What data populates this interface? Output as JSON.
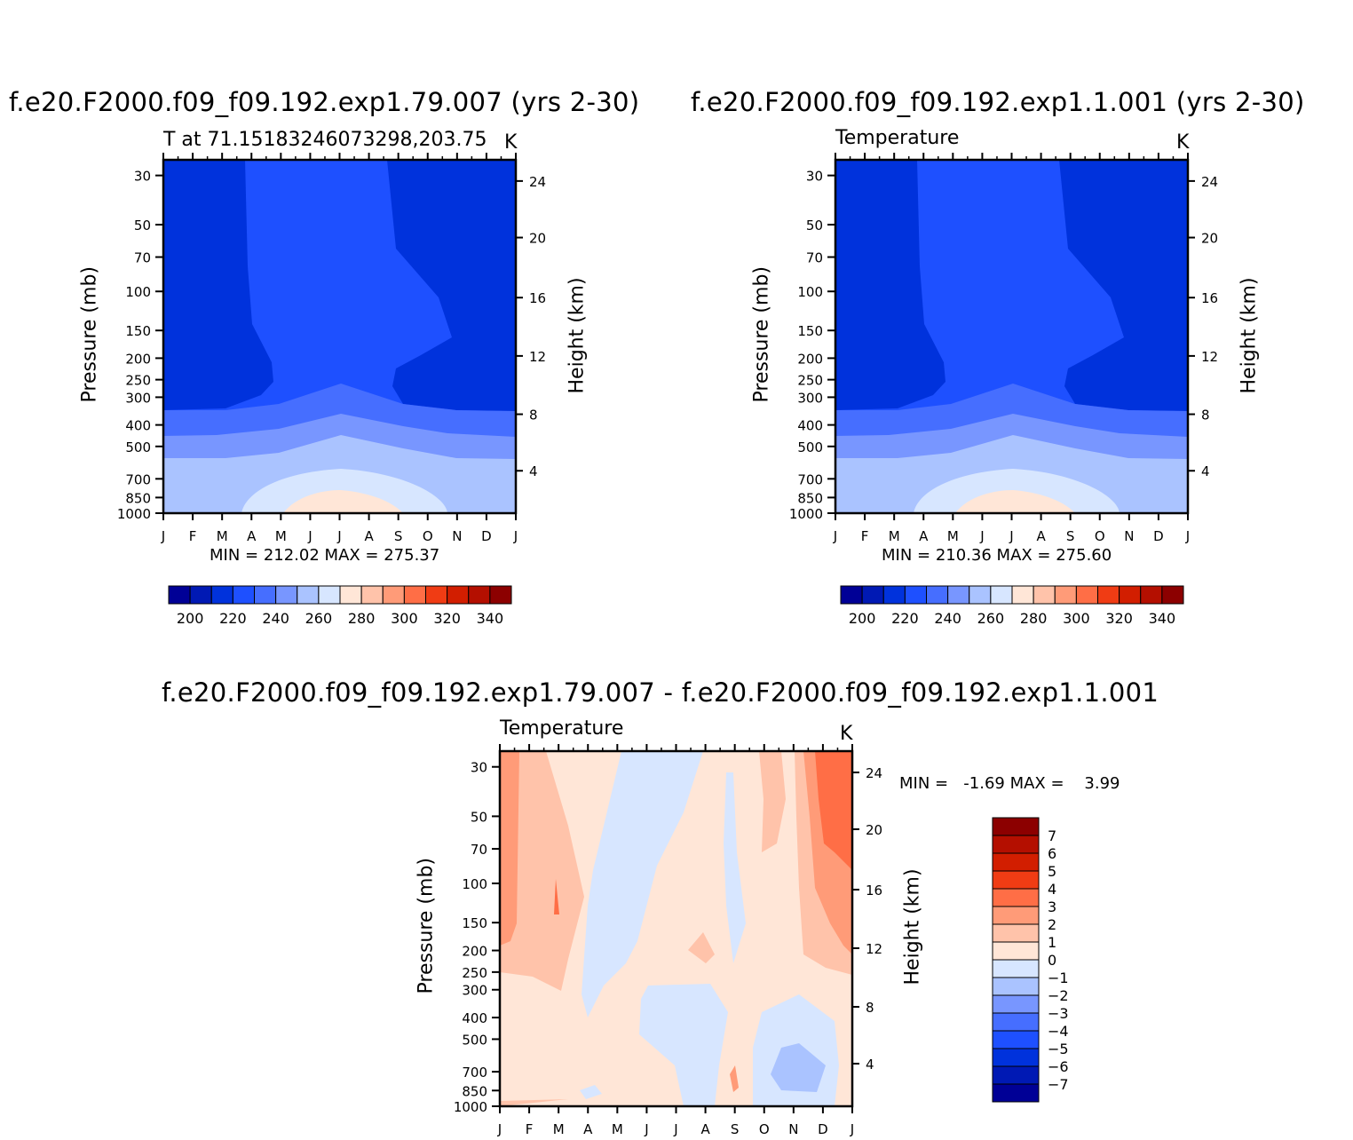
{
  "panels": [
    {
      "title": "f.e20.F2000.f09_f09.192.exp1.79.007 (yrs 2-30)",
      "subtitle": "T at 71.15183246073298,203.75",
      "units": "K",
      "minmax": "MIN = 212.02 MAX = 275.37",
      "ylabel": "Pressure (mb)",
      "ylabel_right": "Height (km)"
    },
    {
      "title": "f.e20.F2000.f09_f09.192.exp1.1.001 (yrs 2-30)",
      "subtitle": "Temperature",
      "units": "K",
      "minmax": "MIN = 210.36 MAX = 275.60",
      "ylabel": "Pressure (mb)",
      "ylabel_right": "Height (km)"
    },
    {
      "title": "f.e20.F2000.f09_f09.192.exp1.79.007 - f.e20.F2000.f09_f09.192.exp1.1.001",
      "subtitle": "Temperature",
      "units": "K",
      "minmax": "MIN =   -1.69 MAX =    3.99",
      "ylabel": "Pressure (mb)",
      "ylabel_right": "Height (km)"
    }
  ],
  "chart_data": [
    {
      "type": "heatmap",
      "panel": "top-left",
      "title": "f.e20.F2000.f09_f09.192.exp1.79.007 (yrs 2-30)",
      "x_categories": [
        "J",
        "F",
        "M",
        "A",
        "M",
        "J",
        "J",
        "A",
        "S",
        "O",
        "N",
        "D",
        "J"
      ],
      "pressure_levels": [
        1000,
        850,
        700,
        500,
        400,
        300,
        250,
        200,
        150,
        100,
        70,
        50,
        30
      ],
      "y_tick_labels": [
        "30",
        "50",
        "70",
        "100",
        "150",
        "200",
        "250",
        "300",
        "400",
        "500",
        "700",
        "850",
        "1000"
      ],
      "y_right_ticks": [
        "4",
        "8",
        "12",
        "16",
        "20",
        "24"
      ],
      "xlabel": "",
      "ylabel": "Pressure (mb)",
      "ylabel_right": "Height (km)",
      "min": 212.02,
      "max": 275.37,
      "colorbar_labels": [
        "200",
        "220",
        "240",
        "260",
        "280",
        "300",
        "320",
        "340"
      ],
      "colorbar_colors": [
        "#000096",
        "#0019b4",
        "#0032dc",
        "#1e50ff",
        "#466eff",
        "#7896ff",
        "#aac3ff",
        "#d7e6ff",
        "#ffe6d7",
        "#ffc3aa",
        "#ff9b78",
        "#ff6e46",
        "#f03c14",
        "#d21e00",
        "#b40f00",
        "#8c0000"
      ]
    },
    {
      "type": "heatmap",
      "panel": "top-right",
      "title": "f.e20.F2000.f09_f09.192.exp1.1.001 (yrs 2-30)",
      "x_categories": [
        "J",
        "F",
        "M",
        "A",
        "M",
        "J",
        "J",
        "A",
        "S",
        "O",
        "N",
        "D",
        "J"
      ],
      "pressure_levels": [
        1000,
        850,
        700,
        500,
        400,
        300,
        250,
        200,
        150,
        100,
        70,
        50,
        30
      ],
      "y_tick_labels": [
        "30",
        "50",
        "70",
        "100",
        "150",
        "200",
        "250",
        "300",
        "400",
        "500",
        "700",
        "850",
        "1000"
      ],
      "y_right_ticks": [
        "4",
        "8",
        "12",
        "16",
        "20",
        "24"
      ],
      "xlabel": "",
      "ylabel": "Pressure (mb)",
      "ylabel_right": "Height (km)",
      "min": 210.36,
      "max": 275.6,
      "colorbar_labels": [
        "200",
        "220",
        "240",
        "260",
        "280",
        "300",
        "320",
        "340"
      ]
    },
    {
      "type": "heatmap",
      "panel": "bottom",
      "title": "f.e20.F2000.f09_f09.192.exp1.79.007 - f.e20.F2000.f09_f09.192.exp1.1.001",
      "x_categories": [
        "J",
        "F",
        "M",
        "A",
        "M",
        "J",
        "J",
        "A",
        "S",
        "O",
        "N",
        "D",
        "J"
      ],
      "y_tick_labels": [
        "30",
        "50",
        "70",
        "100",
        "150",
        "200",
        "250",
        "300",
        "400",
        "500",
        "700",
        "850",
        "1000"
      ],
      "y_right_ticks": [
        "4",
        "8",
        "12",
        "16",
        "20",
        "24"
      ],
      "ylabel": "Pressure (mb)",
      "ylabel_right": "Height (km)",
      "min": -1.69,
      "max": 3.99,
      "colorbar_labels": [
        "7",
        "6",
        "5",
        "4",
        "3",
        "2",
        "1",
        "0",
        "−1",
        "−2",
        "−3",
        "−4",
        "−5",
        "−6",
        "−7"
      ],
      "colorbar_colors": [
        "#8c0000",
        "#b40f00",
        "#d21e00",
        "#f03c14",
        "#ff6e46",
        "#ff9b78",
        "#ffc3aa",
        "#ffe6d7",
        "#d7e6ff",
        "#aac3ff",
        "#7896ff",
        "#466eff",
        "#1e50ff",
        "#0032dc",
        "#0019b4",
        "#000096"
      ]
    }
  ]
}
